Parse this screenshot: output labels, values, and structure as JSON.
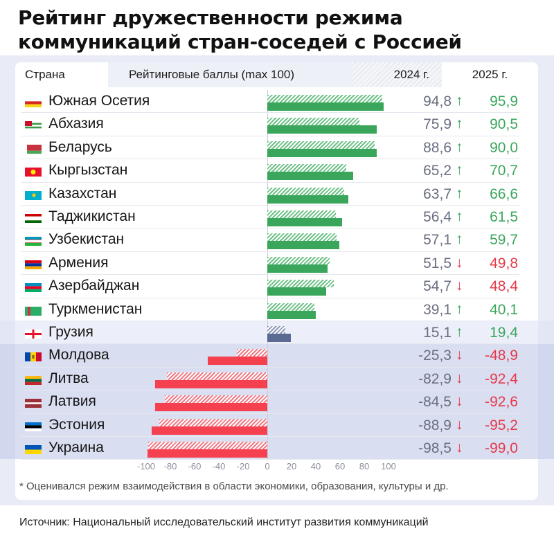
{
  "title": "Рейтинг дружественности режима коммуникаций стран-соседей с Россией",
  "header": {
    "country": "Страна",
    "scores": "Рейтинговые баллы (max 100)",
    "year_2024": "2024 г.",
    "year_2025": "2025 г."
  },
  "colors": {
    "positive": "#3aa65c",
    "negative": "#f5404f",
    "neutral": "#5b6a93",
    "up_arrow": "#3aa65c",
    "down_arrow": "#e5394a",
    "value_2024": "#6a6e80"
  },
  "rows": [
    {
      "country": "Южная Осетия",
      "flag": "south-ossetia-flag",
      "v2024": "94,8",
      "v2025": "95,9",
      "arrow": "↑",
      "trend": "up"
    },
    {
      "country": "Абхазия",
      "flag": "abkhazia-flag",
      "v2024": "75,9",
      "v2025": "90,5",
      "arrow": "↑",
      "trend": "up"
    },
    {
      "country": "Беларусь",
      "flag": "belarus-flag",
      "v2024": "88,6",
      "v2025": "90,0",
      "arrow": "↑",
      "trend": "up"
    },
    {
      "country": "Кыргызстан",
      "flag": "kyrgyzstan-flag",
      "v2024": "65,2",
      "v2025": "70,7",
      "arrow": "↑",
      "trend": "up"
    },
    {
      "country": "Казахстан",
      "flag": "kazakhstan-flag",
      "v2024": "63,7",
      "v2025": "66,6",
      "arrow": "↑",
      "trend": "up"
    },
    {
      "country": "Таджикистан",
      "flag": "tajikistan-flag",
      "v2024": "56,4",
      "v2025": "61,5",
      "arrow": "↑",
      "trend": "up"
    },
    {
      "country": "Узбекистан",
      "flag": "uzbekistan-flag",
      "v2024": "57,1",
      "v2025": "59,7",
      "arrow": "↑",
      "trend": "up"
    },
    {
      "country": "Армения",
      "flag": "armenia-flag",
      "v2024": "51,5",
      "v2025": "49,8",
      "arrow": "↓",
      "trend": "down"
    },
    {
      "country": "Азербайджан",
      "flag": "azerbaijan-flag",
      "v2024": "54,7",
      "v2025": "48,4",
      "arrow": "↓",
      "trend": "down"
    },
    {
      "country": "Туркменистан",
      "flag": "turkmenistan-flag",
      "v2024": "39,1",
      "v2025": "40,1",
      "arrow": "↑",
      "trend": "up"
    },
    {
      "country": "Грузия",
      "flag": "georgia-flag",
      "v2024": "15,1",
      "v2025": "19,4",
      "arrow": "↑",
      "trend": "up"
    },
    {
      "country": "Молдова",
      "flag": "moldova-flag",
      "v2024": "-25,3",
      "v2025": "-48,9",
      "arrow": "↓",
      "trend": "down"
    },
    {
      "country": "Литва",
      "flag": "lithuania-flag",
      "v2024": "-82,9",
      "v2025": "-92,4",
      "arrow": "↓",
      "trend": "down"
    },
    {
      "country": "Латвия",
      "flag": "latvia-flag",
      "v2024": "-84,5",
      "v2025": "-92,6",
      "arrow": "↓",
      "trend": "down"
    },
    {
      "country": "Эстония",
      "flag": "estonia-flag",
      "v2024": "-88,9",
      "v2025": "-95,2",
      "arrow": "↓",
      "trend": "down"
    },
    {
      "country": "Украина",
      "flag": "ukraine-flag",
      "v2024": "-98,5",
      "v2025": "-99,0",
      "arrow": "↓",
      "trend": "down"
    }
  ],
  "axis_ticks": [
    "-100",
    "-80",
    "-60",
    "-40",
    "-20",
    "0",
    "20",
    "40",
    "60",
    "80",
    "100"
  ],
  "footnote": "* Оценивался режим взаимодействия в области экономики, образования, культуры и др.",
  "source": "Источник: Национальный исследовательский институт развития коммуникаций",
  "chart_data": {
    "type": "bar",
    "orientation": "horizontal",
    "title": "Рейтинг дружественности режима коммуникаций стран-соседей с Россией",
    "xlabel": "Рейтинговые баллы (max 100)",
    "ylabel": "Страна",
    "xlim": [
      -100,
      100
    ],
    "x_ticks": [
      -100,
      -80,
      -60,
      -40,
      -20,
      0,
      20,
      40,
      60,
      80,
      100
    ],
    "grid": false,
    "legend": [
      {
        "name": "2024 г.",
        "style": "hatched"
      },
      {
        "name": "2025 г.",
        "style": "solid"
      }
    ],
    "legend_position": "top",
    "categories": [
      "Южная Осетия",
      "Абхазия",
      "Беларусь",
      "Кыргызстан",
      "Казахстан",
      "Таджикистан",
      "Узбекистан",
      "Армения",
      "Азербайджан",
      "Туркменистан",
      "Грузия",
      "Молдова",
      "Литва",
      "Латвия",
      "Эстония",
      "Украина"
    ],
    "series": [
      {
        "name": "2024 г.",
        "values": [
          94.8,
          75.9,
          88.6,
          65.2,
          63.7,
          56.4,
          57.1,
          51.5,
          54.7,
          39.1,
          15.1,
          -25.3,
          -82.9,
          -84.5,
          -88.9,
          -98.5
        ]
      },
      {
        "name": "2025 г.",
        "values": [
          95.9,
          90.5,
          90.0,
          70.7,
          66.6,
          61.5,
          59.7,
          49.8,
          48.4,
          40.1,
          19.4,
          -48.9,
          -92.4,
          -92.6,
          -95.2,
          -99.0
        ]
      }
    ],
    "annotations": [
      "* Оценивался режим взаимодействия в области экономики, образования, культуры и др.",
      "Источник: Национальный исследовательский институт развития коммуникаций"
    ]
  }
}
